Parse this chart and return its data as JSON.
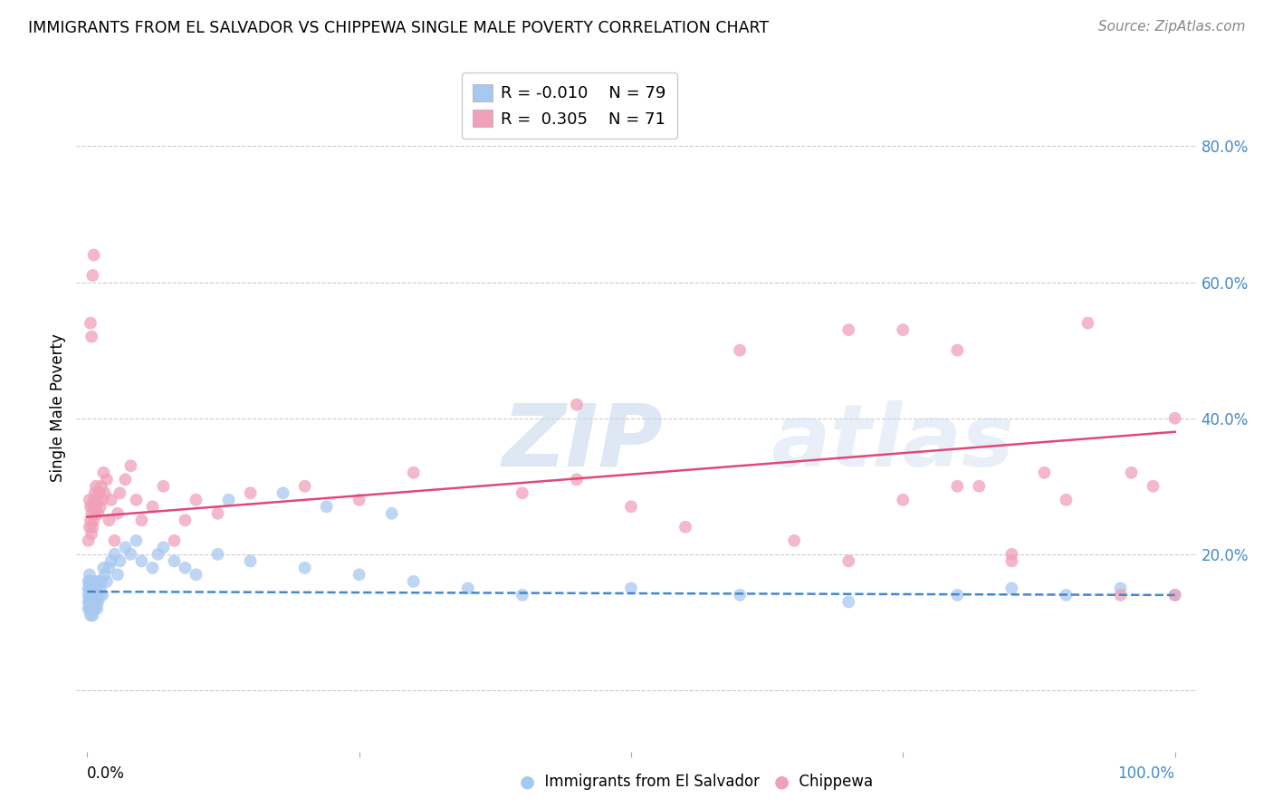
{
  "title": "IMMIGRANTS FROM EL SALVADOR VS CHIPPEWA SINGLE MALE POVERTY CORRELATION CHART",
  "source": "Source: ZipAtlas.com",
  "ylabel": "Single Male Poverty",
  "ytick_labels": [
    "",
    "20.0%",
    "40.0%",
    "60.0%",
    "80.0%"
  ],
  "ytick_vals": [
    0.0,
    0.2,
    0.4,
    0.6,
    0.8
  ],
  "xlim": [
    -0.01,
    1.02
  ],
  "ylim": [
    -0.09,
    0.92
  ],
  "legend_blue_R": "-0.010",
  "legend_blue_N": "79",
  "legend_pink_R": "0.305",
  "legend_pink_N": "71",
  "blue_color": "#a8c8f0",
  "pink_color": "#f0a0b8",
  "blue_line_color": "#4488cc",
  "pink_line_color": "#e04878",
  "blue_trend_x": [
    0.0,
    1.0
  ],
  "blue_trend_y": [
    0.145,
    0.14
  ],
  "pink_trend_x": [
    0.0,
    1.0
  ],
  "pink_trend_y": [
    0.255,
    0.38
  ],
  "blue_scatter_x": [
    0.001,
    0.001,
    0.001,
    0.001,
    0.001,
    0.002,
    0.002,
    0.002,
    0.002,
    0.002,
    0.002,
    0.003,
    0.003,
    0.003,
    0.003,
    0.003,
    0.003,
    0.004,
    0.004,
    0.004,
    0.004,
    0.005,
    0.005,
    0.005,
    0.005,
    0.005,
    0.006,
    0.006,
    0.006,
    0.007,
    0.007,
    0.007,
    0.008,
    0.008,
    0.009,
    0.009,
    0.01,
    0.01,
    0.011,
    0.012,
    0.013,
    0.014,
    0.015,
    0.016,
    0.018,
    0.02,
    0.022,
    0.025,
    0.028,
    0.03,
    0.035,
    0.04,
    0.045,
    0.05,
    0.06,
    0.065,
    0.07,
    0.08,
    0.09,
    0.1,
    0.12,
    0.15,
    0.2,
    0.25,
    0.3,
    0.35,
    0.4,
    0.5,
    0.6,
    0.7,
    0.8,
    0.85,
    0.9,
    0.95,
    1.0,
    0.13,
    0.18,
    0.22,
    0.28
  ],
  "blue_scatter_y": [
    0.12,
    0.13,
    0.14,
    0.15,
    0.16,
    0.12,
    0.13,
    0.14,
    0.15,
    0.16,
    0.17,
    0.11,
    0.12,
    0.13,
    0.14,
    0.15,
    0.16,
    0.12,
    0.13,
    0.14,
    0.16,
    0.11,
    0.12,
    0.13,
    0.14,
    0.15,
    0.13,
    0.14,
    0.15,
    0.12,
    0.14,
    0.16,
    0.13,
    0.15,
    0.12,
    0.14,
    0.13,
    0.16,
    0.14,
    0.15,
    0.16,
    0.14,
    0.18,
    0.17,
    0.16,
    0.18,
    0.19,
    0.2,
    0.17,
    0.19,
    0.21,
    0.2,
    0.22,
    0.19,
    0.18,
    0.2,
    0.21,
    0.19,
    0.18,
    0.17,
    0.2,
    0.19,
    0.18,
    0.17,
    0.16,
    0.15,
    0.14,
    0.15,
    0.14,
    0.13,
    0.14,
    0.15,
    0.14,
    0.15,
    0.14,
    0.28,
    0.29,
    0.27,
    0.26
  ],
  "pink_scatter_x": [
    0.001,
    0.002,
    0.002,
    0.003,
    0.003,
    0.004,
    0.004,
    0.005,
    0.005,
    0.006,
    0.006,
    0.007,
    0.007,
    0.008,
    0.008,
    0.009,
    0.01,
    0.011,
    0.012,
    0.013,
    0.014,
    0.015,
    0.016,
    0.018,
    0.02,
    0.022,
    0.025,
    0.028,
    0.03,
    0.035,
    0.04,
    0.045,
    0.05,
    0.06,
    0.07,
    0.08,
    0.09,
    0.1,
    0.12,
    0.15,
    0.2,
    0.25,
    0.3,
    0.4,
    0.45,
    0.5,
    0.55,
    0.6,
    0.65,
    0.7,
    0.75,
    0.8,
    0.85,
    0.9,
    0.95,
    1.0,
    0.003,
    0.004,
    0.005,
    0.006,
    0.7,
    0.75,
    0.8,
    0.82,
    0.85,
    0.88,
    0.92,
    0.96,
    0.98,
    1.0,
    0.45
  ],
  "pink_scatter_y": [
    0.22,
    0.24,
    0.28,
    0.25,
    0.27,
    0.23,
    0.26,
    0.24,
    0.27,
    0.25,
    0.28,
    0.26,
    0.29,
    0.27,
    0.3,
    0.28,
    0.26,
    0.29,
    0.27,
    0.3,
    0.28,
    0.32,
    0.29,
    0.31,
    0.25,
    0.28,
    0.22,
    0.26,
    0.29,
    0.31,
    0.33,
    0.28,
    0.25,
    0.27,
    0.3,
    0.22,
    0.25,
    0.28,
    0.26,
    0.29,
    0.3,
    0.28,
    0.32,
    0.29,
    0.31,
    0.27,
    0.24,
    0.5,
    0.22,
    0.19,
    0.28,
    0.3,
    0.19,
    0.28,
    0.14,
    0.14,
    0.54,
    0.52,
    0.61,
    0.64,
    0.53,
    0.53,
    0.5,
    0.3,
    0.2,
    0.32,
    0.54,
    0.32,
    0.3,
    0.4,
    0.42
  ]
}
